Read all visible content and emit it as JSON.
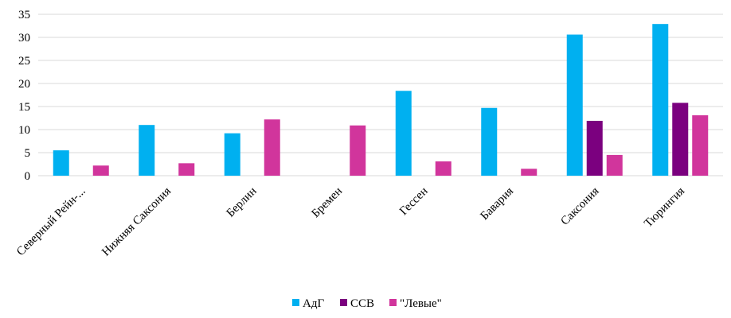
{
  "chart_data": {
    "type": "bar",
    "title": "",
    "xlabel": "",
    "ylabel": "",
    "ylim": [
      0,
      35
    ],
    "yticks": [
      0,
      5,
      10,
      15,
      20,
      25,
      30,
      35
    ],
    "grid": "horizontal",
    "legend_position": "bottom",
    "categories": [
      "Северный Рейн-...",
      "Нижняя Саксония",
      "Берлин",
      "Бремен",
      "Гессен",
      "Бавария",
      "Саксония",
      "Тюрингия"
    ],
    "series": [
      {
        "name": "АдГ",
        "color": "#00b0f0",
        "values": [
          5.5,
          11,
          9.2,
          0,
          18.4,
          14.7,
          30.6,
          32.9
        ]
      },
      {
        "name": "ССВ",
        "color": "#7b007f",
        "values": [
          0,
          0,
          0,
          0,
          0,
          0,
          11.9,
          15.8
        ]
      },
      {
        "name": "\"Левые\"",
        "color": "#d1359c",
        "values": [
          2.2,
          2.7,
          12.2,
          10.9,
          3.1,
          1.5,
          4.5,
          13.1
        ]
      }
    ]
  }
}
